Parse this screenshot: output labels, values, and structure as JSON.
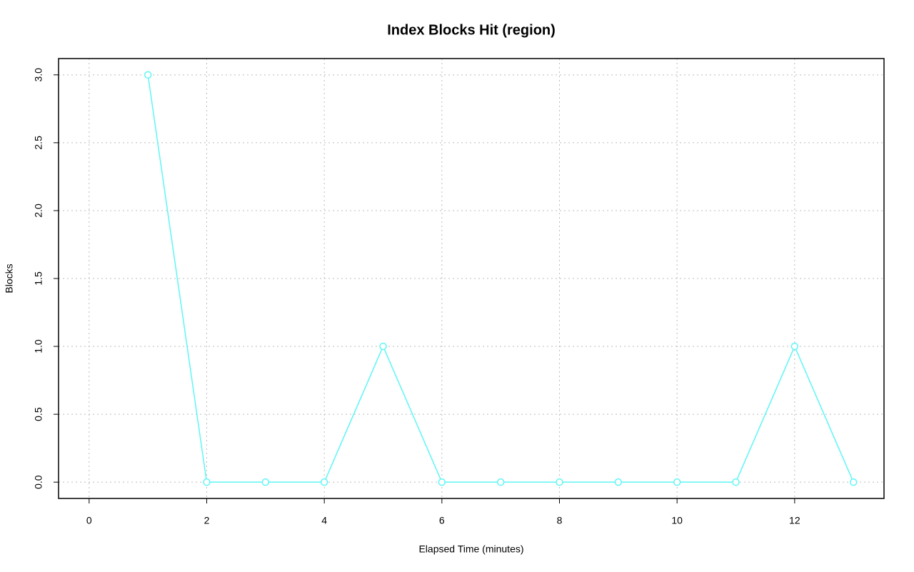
{
  "chart_data": {
    "type": "line",
    "title": "Index Blocks Hit (region)",
    "x_label": "Elapsed Time (minutes)",
    "y_label": "Blocks",
    "x": [
      1,
      2,
      3,
      4,
      5,
      6,
      7,
      8,
      9,
      10,
      11,
      12,
      13
    ],
    "values": [
      3,
      0,
      0,
      0,
      1,
      0,
      0,
      0,
      0,
      0,
      0,
      1,
      0
    ],
    "color": "#5ff5f5",
    "xlim": [
      -0.52,
      13.52
    ],
    "xticks": [
      0,
      2,
      4,
      6,
      8,
      10,
      12
    ],
    "ylim": [
      -0.12,
      3.12
    ],
    "yticks": [
      {
        "value": 0,
        "label": "0.0"
      },
      0.5,
      {
        "value": 1,
        "label": "1.0"
      },
      1.5,
      {
        "value": 2,
        "label": "2.0"
      },
      2.5,
      {
        "value": 3,
        "label": "3.0"
      }
    ],
    "grid": true
  }
}
